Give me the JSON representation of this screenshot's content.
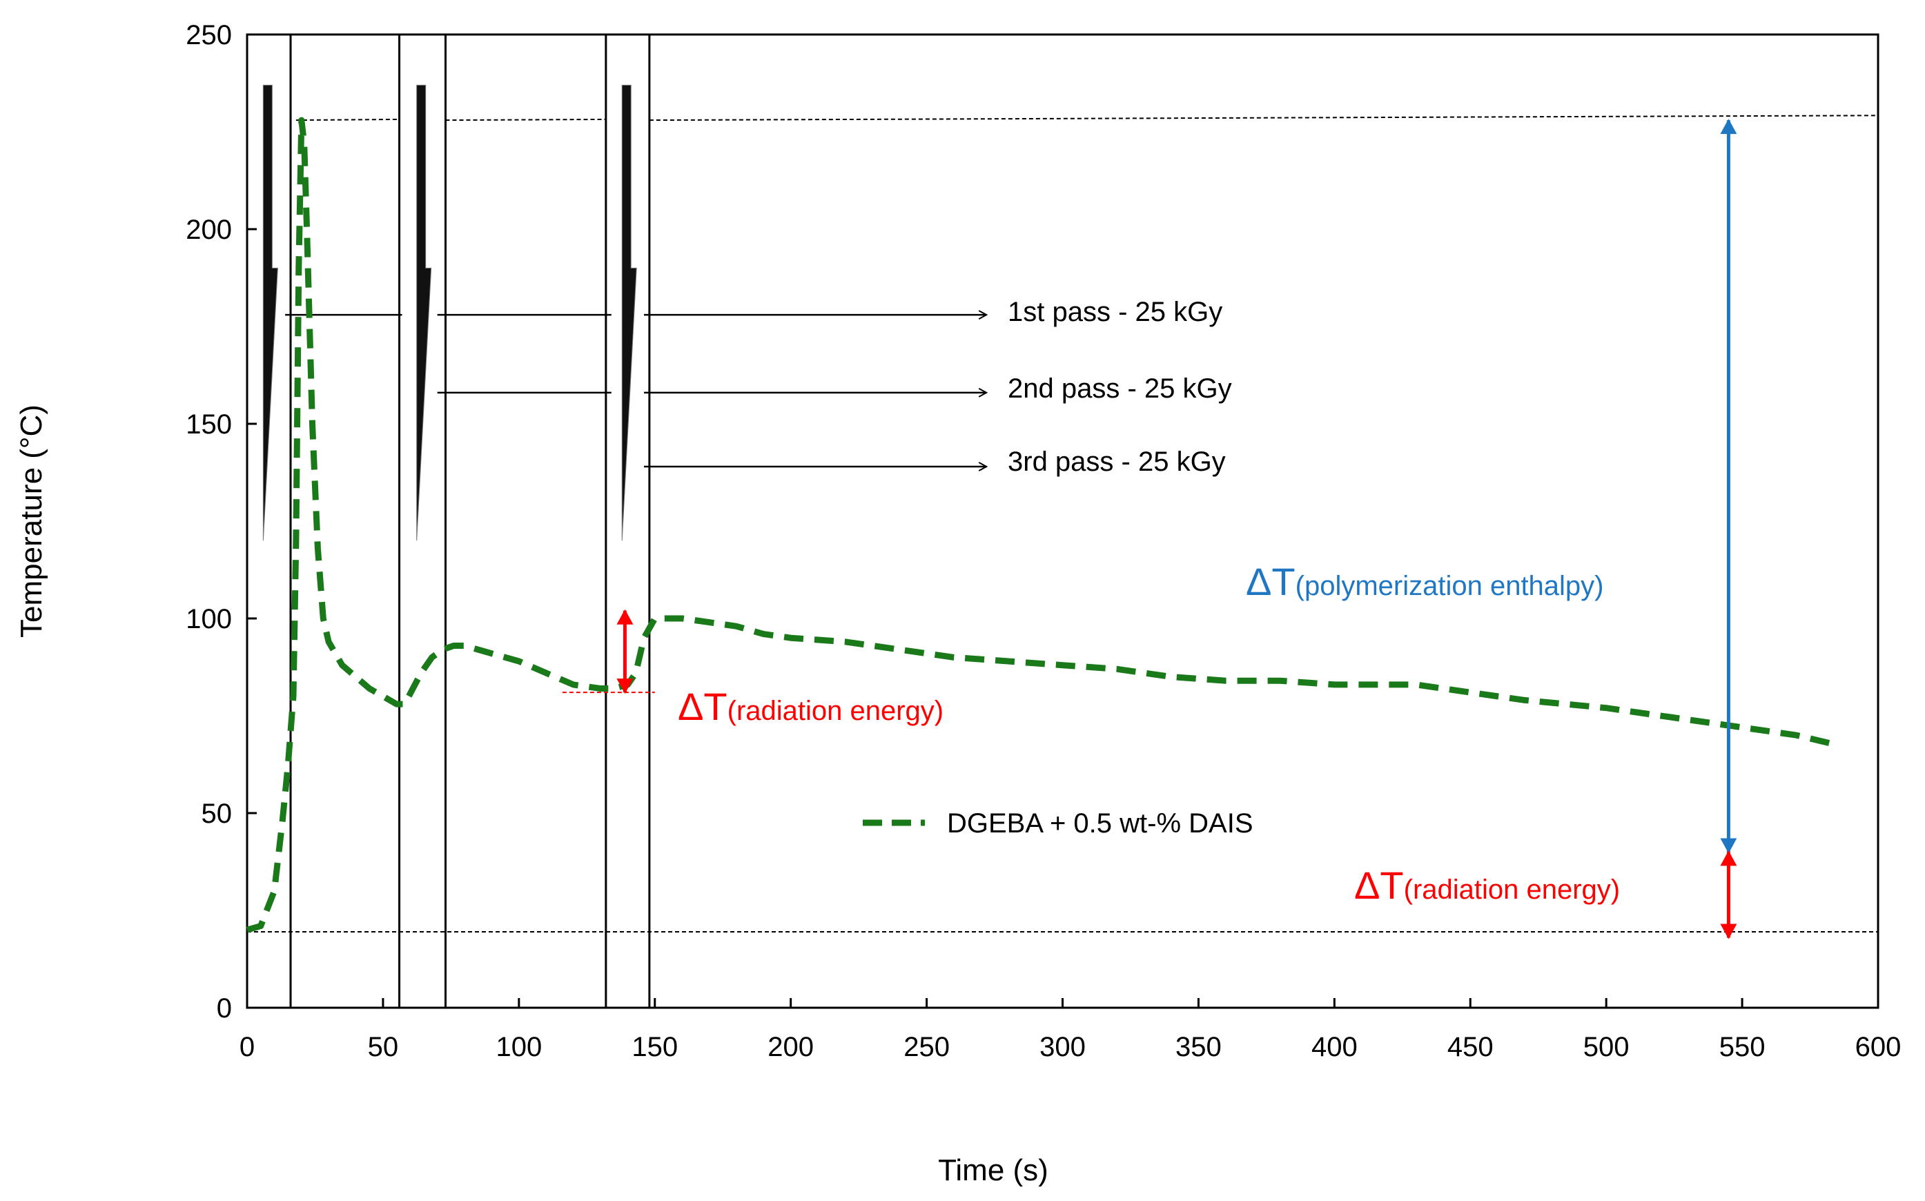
{
  "chart_data": {
    "type": "line",
    "title": "",
    "xlabel": "Time (s)",
    "ylabel": "Temperature (°C)",
    "xlim": [
      0,
      600
    ],
    "ylim": [
      0,
      250
    ],
    "xticks": [
      0,
      50,
      100,
      150,
      200,
      250,
      300,
      350,
      400,
      450,
      500,
      550,
      600
    ],
    "yticks": [
      0,
      50,
      100,
      150,
      200,
      250
    ],
    "grid": false,
    "legend_position": "center-right",
    "series": [
      {
        "name": "DGEBA + 0.5 wt-% DAIS",
        "color": "#1a7a1a",
        "style": "dashed",
        "x": [
          0,
          5,
          10,
          13,
          15,
          17,
          18,
          19,
          20,
          21,
          22,
          24,
          26,
          28,
          30,
          35,
          40,
          45,
          50,
          55,
          58,
          61,
          64,
          68,
          72,
          76,
          80,
          90,
          100,
          110,
          120,
          130,
          135,
          140,
          143,
          146,
          150,
          155,
          160,
          170,
          180,
          190,
          200,
          220,
          240,
          260,
          280,
          300,
          320,
          340,
          360,
          380,
          400,
          420,
          430,
          450,
          470,
          500,
          530,
          550,
          570,
          582
        ],
        "y": [
          20,
          21,
          30,
          48,
          62,
          80,
          120,
          190,
          228,
          222,
          200,
          150,
          118,
          100,
          94,
          88,
          85,
          82,
          80,
          78,
          78,
          82,
          86,
          90,
          92,
          93,
          93,
          91,
          89,
          86,
          83,
          82,
          82,
          83,
          86,
          95,
          100,
          100,
          100,
          99,
          98,
          96,
          95,
          94,
          92,
          90,
          89,
          88,
          87,
          85,
          84,
          84,
          83,
          83,
          83,
          81,
          79,
          77,
          74,
          72,
          70,
          68
        ]
      }
    ],
    "reference_lines": [
      {
        "name": "baseline",
        "y": 19.5
      },
      {
        "name": "max level",
        "y": 228
      }
    ],
    "radiation_passes": [
      {
        "label": "1st pass - 25 kGy",
        "x_start": 0,
        "x_end": 16
      },
      {
        "label": "2nd pass - 25 kGy",
        "x_start": 56,
        "x_end": 73
      },
      {
        "label": "3rd pass - 25 kGy",
        "x_start": 132,
        "x_end": 148
      }
    ],
    "annotations": [
      {
        "name": "polymerization-enthalpy",
        "symbol": "ΔT",
        "text": "(polymerization enthalpy)",
        "color": "#1f77c4"
      },
      {
        "name": "radiation-energy-small",
        "symbol": "ΔT",
        "text": "(radiation energy)",
        "color": "#ff0000"
      },
      {
        "name": "radiation-energy-large",
        "symbol": "ΔT",
        "text": "(radiation energy)",
        "color": "#ff0000"
      }
    ],
    "legend": {
      "label": "DGEBA + 0.5 wt-% DAIS"
    }
  }
}
